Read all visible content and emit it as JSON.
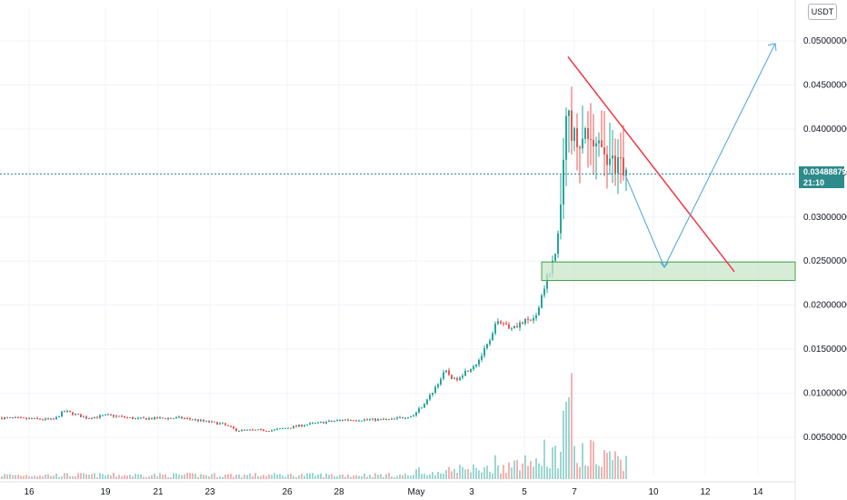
{
  "currency_button": "USDT",
  "last_price": "0.03488879",
  "countdown": "21:10",
  "colors": {
    "up": "#26a69a",
    "down": "#ef5350",
    "price_line": "#2e8b8b",
    "trend_line": "#f23645",
    "projection": "#4aa3df",
    "zone_fill": "#c8e6c9",
    "zone_border": "#43a047"
  },
  "chart_data": {
    "type": "candlestick",
    "y_ticks": [
      "0.05000000",
      "0.04500000",
      "0.04000000",
      "0.03500000",
      "0.03000000",
      "0.02500000",
      "0.02000000",
      "0.01500000",
      "0.01000000",
      "0.00500000"
    ],
    "y_tick_values": [
      0.05,
      0.045,
      0.04,
      0.035,
      0.03,
      0.025,
      0.02,
      0.015,
      0.01,
      0.005
    ],
    "x_ticks": [
      "16",
      "19",
      "21",
      "23",
      "26",
      "28",
      "May",
      "3",
      "5",
      "7",
      "10",
      "12",
      "14"
    ],
    "ylim": [
      0.0,
      0.0505
    ],
    "last_price": 0.03488879,
    "support_zone": [
      0.0228,
      0.0249
    ],
    "annotations": [
      "descending red trendline from the peak",
      "blue projected path down to the support zone then up"
    ],
    "grid": true
  }
}
